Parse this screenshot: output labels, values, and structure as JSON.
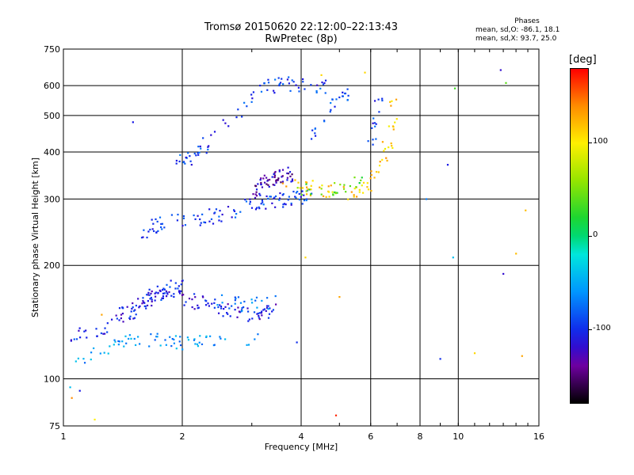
{
  "header": {
    "title_line1": "Tromsø 20150620 22:12:00–22:13:43",
    "title_line2": "RwPretec (8p)"
  },
  "phases": {
    "title": "Phases",
    "line_o": "mean, sd,O: -86.1, 18.1",
    "line_x": "mean, sd,X:  93.7, 25.0"
  },
  "colorbar": {
    "unit": "[deg]",
    "ticks": [
      "100",
      "0",
      "-100"
    ],
    "tick_values": [
      100,
      0,
      -100
    ],
    "range": [
      -180,
      180
    ]
  },
  "chart_data": {
    "type": "scatter",
    "xlabel": "Frequency [MHz]",
    "ylabel": "Stationary phase Virtual Height [km]",
    "x_scale": "log",
    "y_scale": "log",
    "xlim": [
      1,
      16
    ],
    "ylim": [
      75,
      750
    ],
    "x_ticks": [
      1,
      2,
      4,
      6,
      8,
      10,
      16
    ],
    "x_tick_labels": [
      "1",
      "2",
      "4",
      "6",
      "8",
      "10",
      "16"
    ],
    "x_grid": [
      2,
      4,
      6,
      8,
      10
    ],
    "y_ticks": [
      75,
      100,
      200,
      300,
      400,
      500,
      600,
      750
    ],
    "y_tick_labels": [
      "75",
      "100",
      "200",
      "300",
      "400",
      "500",
      "600",
      "750"
    ],
    "y_grid": [
      100,
      200,
      300,
      400,
      500,
      600
    ],
    "grid": true,
    "color_by": "phase [deg]",
    "traces": [
      {
        "x": [
          1.04,
          1.1,
          1.2,
          1.3,
          1.4,
          1.5,
          1.6,
          1.7,
          1.8,
          1.9,
          2.0,
          2.2,
          2.4,
          2.6,
          2.8,
          3.0,
          3.2
        ],
        "y": [
          113,
          112,
          116,
          120,
          124,
          126,
          127,
          128,
          126,
          125,
          125,
          126,
          127,
          127,
          128,
          129,
          128
        ],
        "phase": -60,
        "n": 70
      },
      {
        "x": [
          1.05,
          1.1,
          1.2,
          1.3,
          1.4,
          1.5,
          1.6,
          1.7,
          1.8,
          1.9,
          2.0
        ],
        "y": [
          128,
          130,
          132,
          138,
          146,
          152,
          158,
          165,
          170,
          175,
          180
        ],
        "phase": -105,
        "n": 60
      },
      {
        "x": [
          1.4,
          1.5,
          1.6,
          1.7,
          1.8,
          1.9,
          2.0,
          2.2,
          2.4,
          2.6,
          2.8,
          3.0,
          3.2,
          3.4
        ],
        "y": [
          148,
          152,
          160,
          166,
          172,
          168,
          164,
          160,
          156,
          152,
          150,
          148,
          150,
          152
        ],
        "phase": -110,
        "n": 120
      },
      {
        "x": [
          2.4,
          2.6,
          2.8,
          3.0,
          3.2,
          3.4
        ],
        "y": [
          162,
          160,
          158,
          158,
          160,
          160
        ],
        "phase": -70,
        "n": 25
      },
      {
        "x": [
          1.5,
          1.6,
          1.7,
          1.8,
          1.9,
          2.0,
          2.2,
          2.4,
          2.6,
          2.8,
          3.0,
          3.2,
          3.4,
          3.6,
          3.8,
          4.0,
          4.2
        ],
        "y": [
          240,
          248,
          255,
          258,
          262,
          264,
          266,
          270,
          275,
          282,
          290,
          295,
          297,
          298,
          300,
          301,
          305
        ],
        "phase": -95,
        "n": 110
      },
      {
        "x": [
          3.0,
          3.2,
          3.4,
          3.6,
          3.8
        ],
        "y": [
          310,
          330,
          340,
          345,
          350
        ],
        "phase": -130,
        "n": 60
      },
      {
        "x": [
          3.6,
          4.0,
          4.4,
          4.8,
          5.2,
          5.6,
          6.0,
          6.3,
          6.6,
          6.8,
          6.9
        ],
        "y": [
          330,
          325,
          318,
          312,
          308,
          315,
          335,
          360,
          410,
          480,
          560
        ],
        "phase": 115,
        "n": 70
      },
      {
        "x": [
          4.0,
          4.4,
          4.8,
          5.2,
          5.6,
          6.0
        ],
        "y": [
          315,
          318,
          322,
          326,
          330,
          338
        ],
        "phase": 35,
        "n": 25
      },
      {
        "x": [
          1.9,
          2.0,
          2.1,
          2.2,
          2.4,
          2.6,
          2.8,
          3.0,
          3.2,
          3.4,
          3.6,
          3.8,
          4.2,
          4.8
        ],
        "y": [
          360,
          375,
          390,
          405,
          430,
          470,
          520,
          560,
          590,
          600,
          605,
          610,
          600,
          590
        ],
        "phase": -95,
        "n": 80
      },
      {
        "x": [
          4.2,
          4.5,
          4.8,
          5.0,
          5.3
        ],
        "y": [
          430,
          470,
          520,
          560,
          580
        ],
        "phase": -90,
        "n": 25
      },
      {
        "x": [
          6.0,
          6.1,
          6.2,
          6.3
        ],
        "y": [
          410,
          460,
          520,
          560
        ],
        "phase": -95,
        "n": 15
      }
    ],
    "noise_points": [
      {
        "x": 1.04,
        "y": 95,
        "phase": -40
      },
      {
        "x": 1.1,
        "y": 93,
        "phase": -110
      },
      {
        "x": 1.05,
        "y": 89,
        "phase": 140
      },
      {
        "x": 1.2,
        "y": 78,
        "phase": 100
      },
      {
        "x": 1.25,
        "y": 148,
        "phase": 130
      },
      {
        "x": 1.5,
        "y": 480,
        "phase": -110
      },
      {
        "x": 4.9,
        "y": 80,
        "phase": 170
      },
      {
        "x": 9.0,
        "y": 113,
        "phase": -100
      },
      {
        "x": 11.0,
        "y": 117,
        "phase": 110
      },
      {
        "x": 13.0,
        "y": 190,
        "phase": -120
      },
      {
        "x": 14.0,
        "y": 215,
        "phase": 120
      },
      {
        "x": 9.7,
        "y": 210,
        "phase": -40
      },
      {
        "x": 12.8,
        "y": 660,
        "phase": -120
      },
      {
        "x": 9.8,
        "y": 590,
        "phase": 30
      },
      {
        "x": 13.2,
        "y": 610,
        "phase": 40
      },
      {
        "x": 9.4,
        "y": 370,
        "phase": -110
      },
      {
        "x": 8.3,
        "y": 300,
        "phase": -70
      },
      {
        "x": 5.8,
        "y": 650,
        "phase": 110
      },
      {
        "x": 4.5,
        "y": 640,
        "phase": 110
      },
      {
        "x": 14.5,
        "y": 115,
        "phase": 130
      },
      {
        "x": 4.1,
        "y": 210,
        "phase": 110
      },
      {
        "x": 5.0,
        "y": 165,
        "phase": 130
      },
      {
        "x": 3.9,
        "y": 125,
        "phase": -100
      },
      {
        "x": 14.8,
        "y": 280,
        "phase": 120
      }
    ]
  }
}
